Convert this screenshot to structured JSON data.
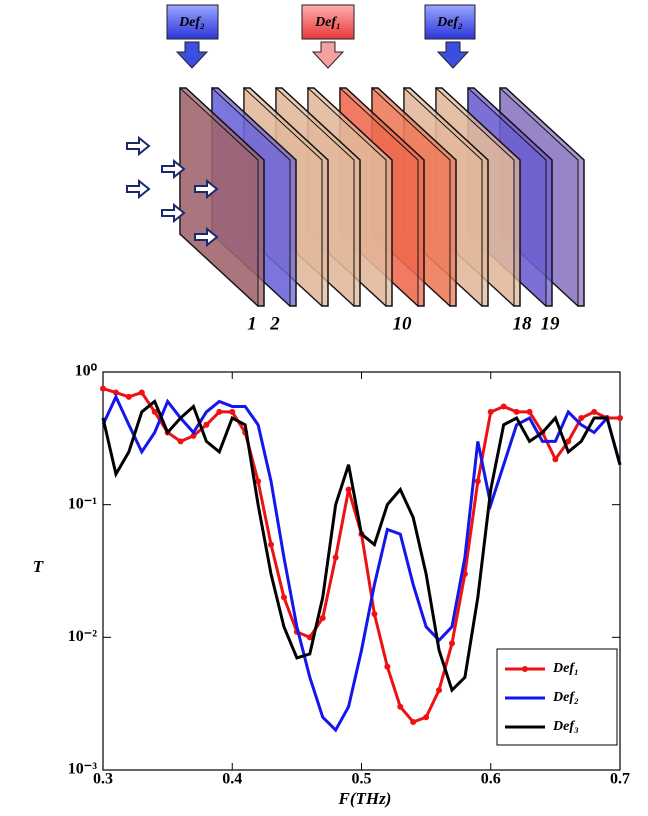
{
  "diagram": {
    "defect_labels": [
      "Def₂",
      "Def₁",
      "Def₂"
    ],
    "layer_labels": [
      "1",
      "2",
      "10",
      "18",
      "19"
    ]
  },
  "chart_data": {
    "type": "line",
    "x_label": "F(THz)",
    "y_label": "T",
    "log_y": true,
    "legend": "lower right",
    "xlim": [
      0.3,
      0.7
    ],
    "xticks": [
      0.3,
      0.4,
      0.5,
      0.6,
      0.7
    ],
    "ylim": [
      0.001,
      1
    ],
    "yticks": [
      {
        "value": 0.001,
        "label": "10⁻³"
      },
      {
        "value": 0.01,
        "label": "10⁻²"
      },
      {
        "value": 0.1,
        "label": "10⁻¹"
      },
      {
        "value": 1,
        "label": "10⁰"
      }
    ],
    "x": [
      0.3,
      0.31,
      0.32,
      0.33,
      0.34,
      0.35,
      0.36,
      0.37,
      0.38,
      0.39,
      0.4,
      0.41,
      0.42,
      0.43,
      0.44,
      0.45,
      0.46,
      0.47,
      0.48,
      0.49,
      0.5,
      0.51,
      0.52,
      0.53,
      0.54,
      0.55,
      0.56,
      0.57,
      0.58,
      0.59,
      0.6,
      0.61,
      0.62,
      0.63,
      0.64,
      0.65,
      0.66,
      0.67,
      0.68,
      0.69,
      0.7
    ],
    "series": [
      {
        "name": "Def₁",
        "color": "#ee1111",
        "markers": true,
        "values": [
          0.75,
          0.7,
          0.65,
          0.7,
          0.5,
          0.35,
          0.3,
          0.33,
          0.4,
          0.5,
          0.5,
          0.35,
          0.15,
          0.05,
          0.02,
          0.011,
          0.01,
          0.014,
          0.04,
          0.13,
          0.06,
          0.015,
          0.006,
          0.003,
          0.0023,
          0.0025,
          0.004,
          0.009,
          0.03,
          0.15,
          0.5,
          0.55,
          0.5,
          0.5,
          0.35,
          0.22,
          0.3,
          0.45,
          0.5,
          0.45,
          0.45
        ]
      },
      {
        "name": "Def₂",
        "color": "#1515ee",
        "markers": false,
        "values": [
          0.4,
          0.65,
          0.4,
          0.25,
          0.35,
          0.6,
          0.45,
          0.35,
          0.5,
          0.6,
          0.55,
          0.55,
          0.4,
          0.15,
          0.04,
          0.012,
          0.005,
          0.0025,
          0.002,
          0.003,
          0.008,
          0.025,
          0.065,
          0.06,
          0.025,
          0.012,
          0.0095,
          0.012,
          0.04,
          0.3,
          0.1,
          0.2,
          0.4,
          0.45,
          0.3,
          0.3,
          0.5,
          0.4,
          0.35,
          0.45,
          0.2
        ]
      },
      {
        "name": "Def₃",
        "color": "#000000",
        "markers": false,
        "values": [
          0.45,
          0.17,
          0.25,
          0.5,
          0.6,
          0.35,
          0.45,
          0.55,
          0.3,
          0.25,
          0.45,
          0.4,
          0.1,
          0.03,
          0.012,
          0.007,
          0.0075,
          0.02,
          0.1,
          0.2,
          0.06,
          0.05,
          0.1,
          0.13,
          0.08,
          0.03,
          0.008,
          0.004,
          0.005,
          0.02,
          0.13,
          0.4,
          0.45,
          0.3,
          0.35,
          0.45,
          0.25,
          0.3,
          0.45,
          0.45,
          0.2
        ]
      }
    ]
  }
}
